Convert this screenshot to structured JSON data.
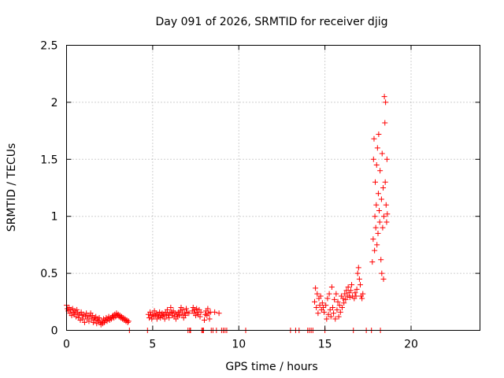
{
  "chart_data": {
    "type": "scatter",
    "title": "Day 091 of 2026, SRMTID for receiver djig",
    "xlabel": "GPS time / hours",
    "ylabel": "SRMTID / TECUs",
    "xlim": [
      0,
      24
    ],
    "ylim": [
      0,
      2.5
    ],
    "xticks": [
      0,
      5,
      10,
      15,
      20
    ],
    "xtick_labels": [
      "0",
      "5",
      "10",
      "15",
      "20"
    ],
    "yticks": [
      0,
      0.5,
      1,
      1.5,
      2,
      2.5
    ],
    "ytick_labels": [
      "0",
      "0.5",
      "1",
      "1.5",
      "2",
      "2.5"
    ],
    "grid": true,
    "marker": "+",
    "series": [
      {
        "name": "SRMTID",
        "color": "#ff0000",
        "points": [
          [
            0.0,
            0.22
          ],
          [
            0.05,
            0.19
          ],
          [
            0.1,
            0.17
          ],
          [
            0.15,
            0.2
          ],
          [
            0.2,
            0.15
          ],
          [
            0.25,
            0.18
          ],
          [
            0.3,
            0.13
          ],
          [
            0.35,
            0.19
          ],
          [
            0.4,
            0.16
          ],
          [
            0.45,
            0.14
          ],
          [
            0.5,
            0.17
          ],
          [
            0.55,
            0.12
          ],
          [
            0.6,
            0.18
          ],
          [
            0.65,
            0.15
          ],
          [
            0.7,
            0.11
          ],
          [
            0.75,
            0.14
          ],
          [
            0.8,
            0.09
          ],
          [
            0.85,
            0.16
          ],
          [
            0.9,
            0.13
          ],
          [
            0.95,
            0.1
          ],
          [
            1.0,
            0.14
          ],
          [
            1.05,
            0.07
          ],
          [
            1.1,
            0.12
          ],
          [
            1.15,
            0.15
          ],
          [
            1.2,
            0.1
          ],
          [
            1.25,
            0.13
          ],
          [
            1.3,
            0.08
          ],
          [
            1.35,
            0.12
          ],
          [
            1.4,
            0.15
          ],
          [
            1.45,
            0.1
          ],
          [
            1.5,
            0.13
          ],
          [
            1.55,
            0.07
          ],
          [
            1.6,
            0.11
          ],
          [
            1.65,
            0.09
          ],
          [
            1.7,
            0.12
          ],
          [
            1.75,
            0.06
          ],
          [
            1.8,
            0.1
          ],
          [
            1.85,
            0.08
          ],
          [
            1.9,
            0.11
          ],
          [
            1.95,
            0.07
          ],
          [
            2.0,
            0.05
          ],
          [
            2.05,
            0.08
          ],
          [
            2.1,
            0.06
          ],
          [
            2.15,
            0.1
          ],
          [
            2.2,
            0.07
          ],
          [
            2.25,
            0.09
          ],
          [
            2.3,
            0.11
          ],
          [
            2.35,
            0.08
          ],
          [
            2.4,
            0.1
          ],
          [
            2.45,
            0.12
          ],
          [
            2.5,
            0.09
          ],
          [
            2.55,
            0.11
          ],
          [
            2.6,
            0.1
          ],
          [
            2.65,
            0.12
          ],
          [
            2.7,
            0.13
          ],
          [
            2.75,
            0.11
          ],
          [
            2.8,
            0.14
          ],
          [
            2.85,
            0.12
          ],
          [
            2.9,
            0.15
          ],
          [
            2.95,
            0.13
          ],
          [
            3.0,
            0.14
          ],
          [
            3.05,
            0.12
          ],
          [
            3.1,
            0.13
          ],
          [
            3.15,
            0.11
          ],
          [
            3.2,
            0.12
          ],
          [
            3.25,
            0.1
          ],
          [
            3.3,
            0.11
          ],
          [
            3.35,
            0.09
          ],
          [
            3.4,
            0.1
          ],
          [
            3.45,
            0.08
          ],
          [
            3.5,
            0.09
          ],
          [
            3.55,
            0.07
          ],
          [
            3.6,
            0.08
          ],
          [
            3.65,
            0.0
          ],
          [
            4.7,
            0.0
          ],
          [
            4.75,
            0.14
          ],
          [
            4.8,
            0.11
          ],
          [
            4.85,
            0.16
          ],
          [
            4.9,
            0.13
          ],
          [
            4.95,
            0.1
          ],
          [
            5.0,
            0.14
          ],
          [
            5.05,
            0.12
          ],
          [
            5.1,
            0.17
          ],
          [
            5.15,
            0.13
          ],
          [
            5.2,
            0.15
          ],
          [
            5.25,
            0.1
          ],
          [
            5.3,
            0.14
          ],
          [
            5.35,
            0.12
          ],
          [
            5.4,
            0.16
          ],
          [
            5.45,
            0.11
          ],
          [
            5.5,
            0.13
          ],
          [
            5.55,
            0.15
          ],
          [
            5.6,
            0.12
          ],
          [
            5.65,
            0.14
          ],
          [
            5.7,
            0.1
          ],
          [
            5.75,
            0.16
          ],
          [
            5.8,
            0.13
          ],
          [
            5.85,
            0.18
          ],
          [
            5.9,
            0.14
          ],
          [
            5.95,
            0.11
          ],
          [
            6.0,
            0.15
          ],
          [
            6.05,
            0.2
          ],
          [
            6.1,
            0.16
          ],
          [
            6.15,
            0.13
          ],
          [
            6.2,
            0.17
          ],
          [
            6.25,
            0.12
          ],
          [
            6.3,
            0.15
          ],
          [
            6.35,
            0.1
          ],
          [
            6.4,
            0.14
          ],
          [
            6.45,
            0.12
          ],
          [
            6.5,
            0.16
          ],
          [
            6.55,
            0.13
          ],
          [
            6.6,
            0.17
          ],
          [
            6.65,
            0.2
          ],
          [
            6.7,
            0.14
          ],
          [
            6.75,
            0.18
          ],
          [
            6.8,
            0.11
          ],
          [
            6.85,
            0.15
          ],
          [
            6.9,
            0.13
          ],
          [
            6.95,
            0.19
          ],
          [
            7.0,
            0.16
          ],
          [
            7.05,
            0.0
          ],
          [
            7.1,
            0.15
          ],
          [
            7.15,
            0.0
          ],
          [
            7.2,
            0.0
          ],
          [
            7.3,
            0.17
          ],
          [
            7.35,
            0.2
          ],
          [
            7.4,
            0.15
          ],
          [
            7.45,
            0.18
          ],
          [
            7.5,
            0.13
          ],
          [
            7.55,
            0.19
          ],
          [
            7.6,
            0.16
          ],
          [
            7.65,
            0.14
          ],
          [
            7.7,
            0.18
          ],
          [
            7.75,
            0.12
          ],
          [
            7.8,
            0.16
          ],
          [
            7.85,
            0.0
          ],
          [
            7.9,
            0.0
          ],
          [
            7.95,
            0.0
          ],
          [
            8.0,
            0.09
          ],
          [
            8.05,
            0.14
          ],
          [
            8.1,
            0.17
          ],
          [
            8.15,
            0.13
          ],
          [
            8.2,
            0.19
          ],
          [
            8.25,
            0.15
          ],
          [
            8.3,
            0.1
          ],
          [
            8.35,
            0.16
          ],
          [
            8.4,
            0.0
          ],
          [
            8.5,
            0.0
          ],
          [
            8.6,
            0.16
          ],
          [
            8.7,
            0.0
          ],
          [
            8.85,
            0.15
          ],
          [
            9.0,
            0.0
          ],
          [
            9.1,
            0.0
          ],
          [
            9.2,
            0.0
          ],
          [
            9.3,
            0.0
          ],
          [
            10.4,
            0.0
          ],
          [
            13.0,
            0.0
          ],
          [
            13.3,
            0.0
          ],
          [
            13.5,
            0.0
          ],
          [
            14.0,
            0.0
          ],
          [
            14.1,
            0.0
          ],
          [
            14.2,
            0.0
          ],
          [
            14.3,
            0.0
          ],
          [
            14.4,
            0.25
          ],
          [
            14.45,
            0.37
          ],
          [
            14.5,
            0.2
          ],
          [
            14.55,
            0.32
          ],
          [
            14.6,
            0.15
          ],
          [
            14.65,
            0.28
          ],
          [
            14.7,
            0.22
          ],
          [
            14.75,
            0.3
          ],
          [
            14.8,
            0.18
          ],
          [
            14.85,
            0.24
          ],
          [
            14.9,
            0.2
          ],
          [
            14.95,
            0.16
          ],
          [
            15.0,
            0.0
          ],
          [
            15.05,
            0.22
          ],
          [
            15.1,
            0.1
          ],
          [
            15.15,
            0.28
          ],
          [
            15.2,
            0.14
          ],
          [
            15.25,
            0.32
          ],
          [
            15.3,
            0.18
          ],
          [
            15.35,
            0.12
          ],
          [
            15.4,
            0.38
          ],
          [
            15.45,
            0.2
          ],
          [
            15.5,
            0.15
          ],
          [
            15.55,
            0.27
          ],
          [
            15.6,
            0.1
          ],
          [
            15.65,
            0.32
          ],
          [
            15.7,
            0.18
          ],
          [
            15.75,
            0.25
          ],
          [
            15.8,
            0.12
          ],
          [
            15.85,
            0.22
          ],
          [
            15.9,
            0.16
          ],
          [
            15.95,
            0.3
          ],
          [
            16.0,
            0.2
          ],
          [
            16.05,
            0.28
          ],
          [
            16.1,
            0.24
          ],
          [
            16.15,
            0.32
          ],
          [
            16.2,
            0.27
          ],
          [
            16.25,
            0.35
          ],
          [
            16.3,
            0.3
          ],
          [
            16.35,
            0.38
          ],
          [
            16.4,
            0.33
          ],
          [
            16.45,
            0.29
          ],
          [
            16.5,
            0.35
          ],
          [
            16.55,
            0.4
          ],
          [
            16.6,
            0.3
          ],
          [
            16.65,
            0.0
          ],
          [
            16.7,
            0.28
          ],
          [
            16.75,
            0.33
          ],
          [
            16.8,
            0.3
          ],
          [
            16.85,
            0.36
          ],
          [
            16.9,
            0.5
          ],
          [
            16.95,
            0.55
          ],
          [
            17.0,
            0.45
          ],
          [
            17.05,
            0.4
          ],
          [
            17.1,
            0.3
          ],
          [
            17.15,
            0.28
          ],
          [
            17.2,
            0.32
          ],
          [
            17.4,
            0.0
          ],
          [
            17.7,
            0.0
          ],
          [
            17.75,
            0.6
          ],
          [
            17.8,
            0.8
          ],
          [
            17.82,
            1.5
          ],
          [
            17.85,
            1.68
          ],
          [
            17.88,
            0.7
          ],
          [
            17.9,
            1.0
          ],
          [
            17.92,
            1.3
          ],
          [
            17.95,
            0.9
          ],
          [
            17.98,
            1.1
          ],
          [
            18.0,
            1.45
          ],
          [
            18.02,
            0.75
          ],
          [
            18.05,
            1.6
          ],
          [
            18.08,
            0.85
          ],
          [
            18.1,
            1.2
          ],
          [
            18.12,
            1.72
          ],
          [
            18.15,
            1.05
          ],
          [
            18.18,
            0.95
          ],
          [
            18.2,
            1.4
          ],
          [
            18.22,
            0.0
          ],
          [
            18.25,
            0.62
          ],
          [
            18.28,
            1.15
          ],
          [
            18.3,
            0.5
          ],
          [
            18.32,
            1.55
          ],
          [
            18.35,
            0.9
          ],
          [
            18.38,
            1.25
          ],
          [
            18.4,
            0.45
          ],
          [
            18.42,
            1.0
          ],
          [
            18.45,
            2.05
          ],
          [
            18.48,
            1.82
          ],
          [
            18.5,
            1.3
          ],
          [
            18.52,
            2.0
          ],
          [
            18.55,
            1.1
          ],
          [
            18.58,
            0.95
          ],
          [
            18.6,
            1.5
          ],
          [
            18.62,
            1.02
          ]
        ]
      }
    ]
  }
}
